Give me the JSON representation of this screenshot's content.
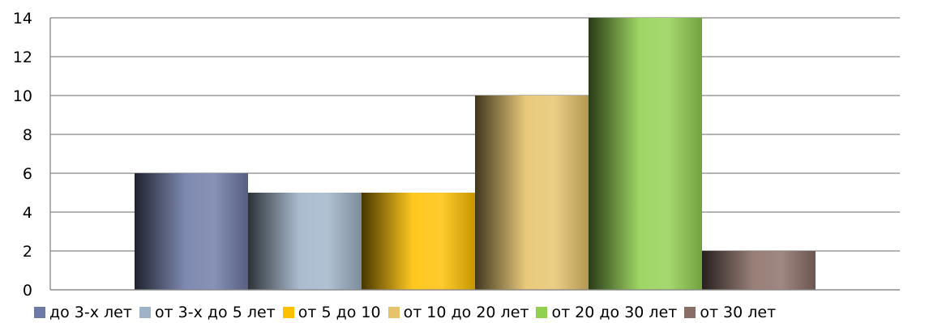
{
  "chart_data": {
    "type": "bar",
    "title": "",
    "xlabel": "",
    "ylabel": "",
    "ylim": [
      0,
      14
    ],
    "yticks": [
      0,
      2,
      4,
      6,
      8,
      10,
      12,
      14
    ],
    "grid": true,
    "legend_position": "bottom",
    "series": [
      {
        "name": "до 3-х лет",
        "value": 6,
        "color": "#6e7aa6"
      },
      {
        "name": "от 3-х до 5 лет",
        "value": 5,
        "color": "#9fb3c8"
      },
      {
        "name": "от 5 до 10",
        "value": 5,
        "color": "#ffc000"
      },
      {
        "name": "от 10 до 20 лет",
        "value": 10,
        "color": "#e6c36a"
      },
      {
        "name": "от 20 до 30 лет",
        "value": 14,
        "color": "#92d050"
      },
      {
        "name": "от 30 лет",
        "value": 2,
        "color": "#8a6d66"
      }
    ]
  }
}
